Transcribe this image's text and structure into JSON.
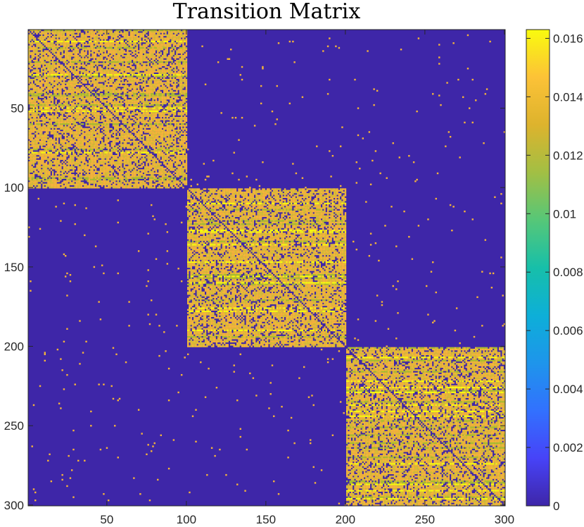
{
  "chart_data": {
    "type": "heatmap",
    "title": "Transition Matrix",
    "xlabel": "",
    "ylabel": "",
    "xlim": [
      1,
      300
    ],
    "ylim": [
      1,
      300
    ],
    "y_direction": "top-to-bottom",
    "x_ticks": [
      50,
      100,
      150,
      200,
      250,
      300
    ],
    "y_ticks": [
      50,
      100,
      150,
      200,
      250,
      300
    ],
    "matrix_size": 300,
    "blocks": [
      {
        "rows": [
          1,
          100
        ],
        "cols": [
          1,
          100
        ]
      },
      {
        "rows": [
          101,
          200
        ],
        "cols": [
          101,
          200
        ]
      },
      {
        "rows": [
          201,
          300
        ],
        "cols": [
          201,
          300
        ]
      }
    ],
    "block_fill_fraction": 0.78,
    "block_typical_value": 0.0135,
    "diagonal_value": 0.0135,
    "off_block_sparse_fraction": 0.006,
    "colorbar": {
      "min": 0,
      "max": 0.0163,
      "ticks": [
        0,
        0.002,
        0.004,
        0.006,
        0.008,
        0.01,
        0.012,
        0.014,
        0.016
      ],
      "tick_labels": [
        "0",
        "0.002",
        "0.004",
        "0.006",
        "0.008",
        "0.01",
        "0.012",
        "0.014",
        "0.016"
      ],
      "colormap": "parula",
      "position": "right"
    },
    "colors": {
      "zero": "#3e26a8",
      "low_yellow": "#d8bd35",
      "orange": "#f4b43a",
      "high": "#f9fb0e",
      "green_band": "#aabd2e"
    }
  }
}
